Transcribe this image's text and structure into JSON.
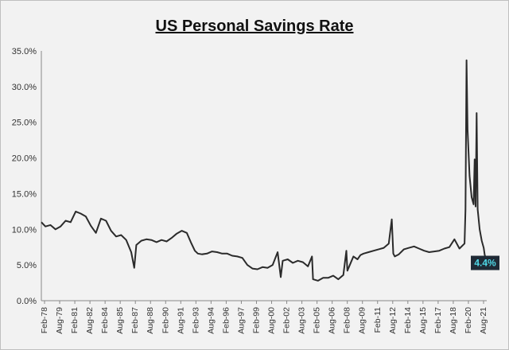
{
  "chart_data": {
    "type": "line",
    "title": "US Personal Savings Rate",
    "xlabel": "",
    "ylabel": "",
    "ylim": [
      0,
      35
    ],
    "yticks": [
      "0.0%",
      "5.0%",
      "10.0%",
      "15.0%",
      "20.0%",
      "25.0%",
      "30.0%",
      "35.0%"
    ],
    "xticks": [
      "Feb-78",
      "Aug-79",
      "Feb-81",
      "Aug-82",
      "Feb-84",
      "Aug-85",
      "Feb-87",
      "Aug-88",
      "Feb-90",
      "Aug-91",
      "Feb-93",
      "Aug-94",
      "Feb-96",
      "Aug-97",
      "Feb-99",
      "Aug-00",
      "Feb-02",
      "Aug-03",
      "Feb-05",
      "Aug-06",
      "Feb-08",
      "Aug-09",
      "Feb-11",
      "Aug-12",
      "Feb-14",
      "Aug-15",
      "Feb-17",
      "Aug-18",
      "Feb-20",
      "Aug-21"
    ],
    "grid": false,
    "line_color": "#2b2b2b",
    "annotation": {
      "label": "4.4%",
      "value": 4.4,
      "bg": "#1f2a36",
      "color": "#4fd8e8"
    },
    "series": [
      {
        "x": [
          1978.1,
          1978.5,
          1979.0,
          1979.5,
          1980.0,
          1980.5,
          1981.0,
          1981.5,
          1982.0,
          1982.5,
          1983.0,
          1983.5,
          1984.0,
          1984.5,
          1985.0,
          1985.5,
          1986.0,
          1986.5,
          1987.0,
          1987.3,
          1987.5,
          1988.0,
          1988.5,
          1989.0,
          1989.5,
          1990.0,
          1990.5,
          1991.0,
          1991.5,
          1992.0,
          1992.5,
          1992.9,
          1993.3,
          1993.6,
          1994.0,
          1994.5,
          1995.0,
          1995.5,
          1996.0,
          1996.5,
          1997.0,
          1997.5,
          1998.0,
          1998.5,
          1999.0,
          1999.5,
          2000.0,
          2000.5,
          2001.0,
          2001.5,
          2001.8,
          2002.0,
          2002.5,
          2003.0,
          2003.5,
          2004.0,
          2004.5,
          2004.9,
          2005.0,
          2005.5,
          2006.0,
          2006.5,
          2007.0,
          2007.5,
          2008.0,
          2008.3,
          2008.4,
          2008.7,
          2009.0,
          2009.4,
          2009.7,
          2010.0,
          2010.5,
          2011.0,
          2011.5,
          2012.0,
          2012.5,
          2012.8,
          2012.95,
          2013.1,
          2013.5,
          2014.0,
          2014.5,
          2015.0,
          2015.5,
          2016.0,
          2016.5,
          2017.0,
          2017.5,
          2018.0,
          2018.5,
          2019.0,
          2019.5,
          2020.0,
          2020.1,
          2020.2,
          2020.3,
          2020.5,
          2020.7,
          2020.9,
          2021.0,
          2021.1,
          2021.2,
          2021.3,
          2021.5,
          2021.7,
          2021.9,
          2022.0,
          2022.2
        ],
        "y": [
          11.0,
          10.4,
          10.6,
          10.0,
          10.4,
          11.2,
          11.0,
          12.5,
          12.2,
          11.8,
          10.5,
          9.5,
          11.5,
          11.2,
          9.8,
          9.0,
          9.2,
          8.5,
          6.8,
          4.6,
          7.8,
          8.4,
          8.6,
          8.5,
          8.2,
          8.5,
          8.3,
          8.8,
          9.4,
          9.8,
          9.5,
          8.2,
          7.0,
          6.6,
          6.5,
          6.6,
          6.9,
          6.8,
          6.6,
          6.6,
          6.3,
          6.2,
          6.0,
          5.0,
          4.5,
          4.4,
          4.7,
          4.6,
          5.0,
          6.8,
          3.3,
          5.6,
          5.8,
          5.3,
          5.6,
          5.4,
          4.8,
          6.2,
          3.0,
          2.8,
          3.2,
          3.2,
          3.5,
          3.0,
          3.6,
          7.0,
          4.2,
          5.2,
          6.2,
          5.8,
          6.4,
          6.6,
          6.8,
          7.0,
          7.2,
          7.4,
          8.0,
          11.4,
          6.6,
          6.2,
          6.5,
          7.2,
          7.4,
          7.6,
          7.3,
          7.0,
          6.8,
          6.9,
          7.0,
          7.3,
          7.5,
          8.6,
          7.3,
          8.0,
          12.8,
          33.7,
          24.0,
          17.5,
          14.5,
          13.5,
          19.8,
          13.2,
          26.3,
          12.8,
          10.0,
          8.4,
          7.4,
          6.4,
          5.5
        ]
      }
    ]
  }
}
